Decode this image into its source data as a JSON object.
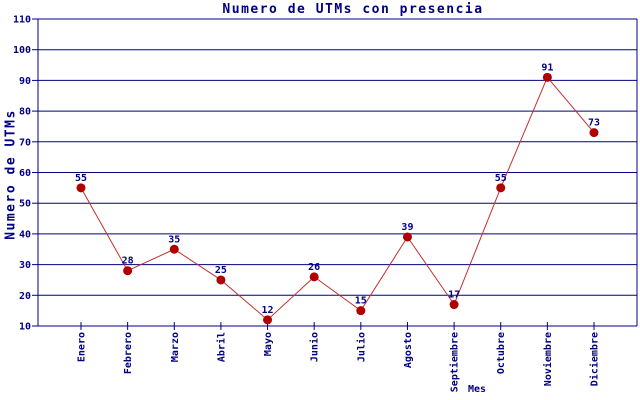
{
  "chart_data": {
    "type": "line",
    "title": "Numero de UTMs con presencia",
    "xlabel": "Mes",
    "ylabel": "Numero de UTMs",
    "categories": [
      "Enero",
      "Febrero",
      "Marzo",
      "Abril",
      "Mayo",
      "Junio",
      "Julio",
      "Agosto",
      "Septiembre",
      "Octubre",
      "Noviembre",
      "Diciembre"
    ],
    "values": [
      55,
      28,
      35,
      25,
      12,
      26,
      15,
      39,
      17,
      55,
      91,
      73
    ],
    "ylim": [
      10,
      110
    ],
    "ytick_step": 10,
    "grid": "horizontal",
    "legend": "none",
    "point_labels_visible": true,
    "x_tick_label_rotation_deg": -90,
    "colors": {
      "text_and_grid": "#000080",
      "line": "#c03030",
      "marker": "#b00000",
      "background": "#ffffff"
    }
  }
}
